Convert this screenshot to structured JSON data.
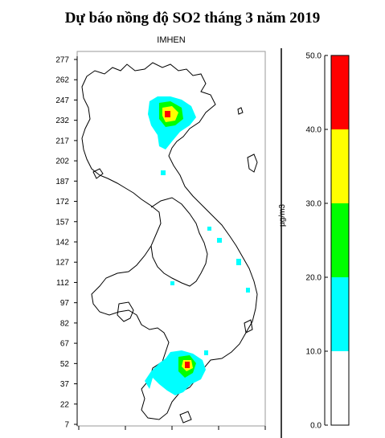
{
  "page": {
    "title": "Dự báo nồng độ SO2 tháng 3 năm 2019",
    "subtitle": "IMHEN"
  },
  "map": {
    "y_ticks": [
      "277",
      "262",
      "247",
      "232",
      "217",
      "202",
      "187",
      "172",
      "157",
      "142",
      "127",
      "112",
      "97",
      "82",
      "67",
      "52",
      "37",
      "22",
      "7"
    ],
    "y_range": [
      7,
      277
    ],
    "x_tick_count": 5,
    "colors": {
      "outline": "#000000",
      "low": "#00ffff",
      "mid": "#00ff00",
      "high": "#ffff00",
      "max": "#ff0000"
    }
  },
  "legend": {
    "unit": "µg/m3",
    "ticks": [
      "50.0",
      "40.0",
      "30.0",
      "20.0",
      "10.0",
      "0.0"
    ],
    "bins": [
      {
        "from": 0,
        "to": 10,
        "color": "#ffffff"
      },
      {
        "from": 10,
        "to": 20,
        "color": "#00ffff"
      },
      {
        "from": 20,
        "to": 30,
        "color": "#00ff00"
      },
      {
        "from": 30,
        "to": 40,
        "color": "#ffff00"
      },
      {
        "from": 40,
        "to": 50,
        "color": "#ff0000"
      }
    ]
  }
}
